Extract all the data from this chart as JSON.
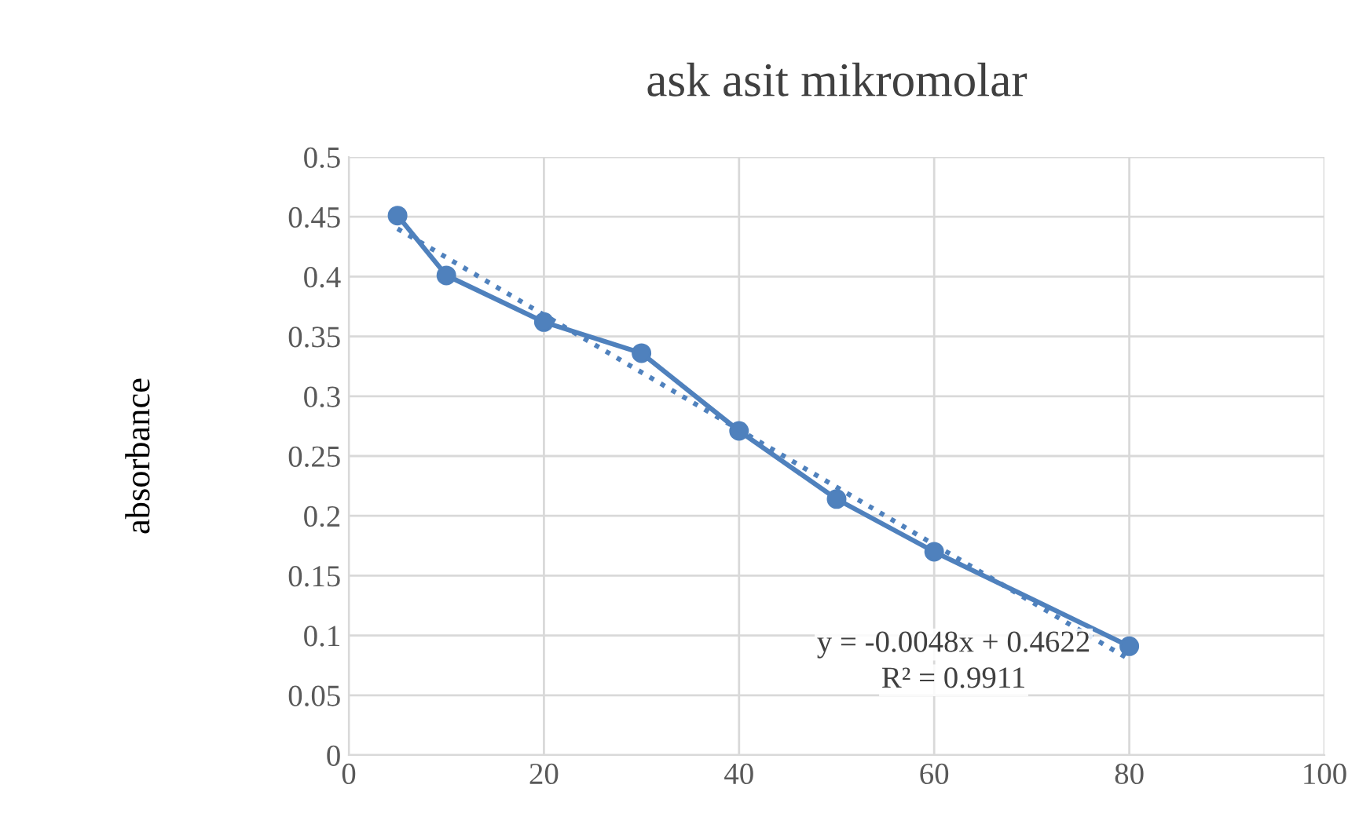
{
  "chart_data": {
    "type": "line",
    "title": "ask asit mikromolar",
    "ylabel": "absorbance",
    "xlim": [
      0,
      100
    ],
    "xticks": [
      0,
      20,
      40,
      60,
      80,
      100
    ],
    "ylim": [
      0,
      0.5
    ],
    "yticks": [
      0,
      0.05,
      0.1,
      0.15,
      0.2,
      0.25,
      0.3,
      0.35,
      0.4,
      0.45,
      0.5
    ],
    "grid": true,
    "legend": false,
    "series": [
      {
        "color": "#4f81bd",
        "marker": "circle",
        "line_style": "solid",
        "x": [
          5,
          10,
          20,
          30,
          40,
          50,
          60,
          80
        ],
        "values": [
          0.451,
          0.401,
          0.362,
          0.336,
          0.271,
          0.214,
          0.17,
          0.091
        ]
      },
      {
        "color": "#4f81bd",
        "marker": "none",
        "line_style": "dotted",
        "x": [
          5,
          80
        ],
        "values": [
          0.44,
          0.08
        ]
      }
    ],
    "annotations": [
      "y = -0.0048x + 0.4622",
      "R² = 0.9911"
    ]
  }
}
